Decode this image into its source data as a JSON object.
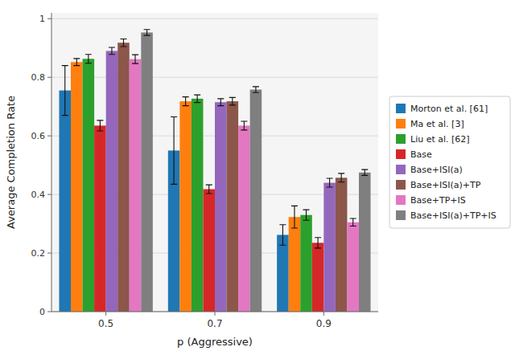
{
  "chart_data": {
    "type": "bar",
    "xlabel": "p (Aggressive)",
    "ylabel": "Average Completion Rate",
    "categories": [
      "0.5",
      "0.7",
      "0.9"
    ],
    "series": [
      {
        "name": "Morton et al. [61]",
        "color": "#1f77b4",
        "values": [
          0.755,
          0.55,
          0.262
        ],
        "errors": [
          0.085,
          0.115,
          0.035
        ]
      },
      {
        "name": "Ma et al. [3]",
        "color": "#ff7f0e",
        "values": [
          0.852,
          0.718,
          0.323
        ],
        "errors": [
          0.012,
          0.015,
          0.038
        ]
      },
      {
        "name": "Liu et al. [62]",
        "color": "#2ca02c",
        "values": [
          0.863,
          0.727,
          0.33
        ],
        "errors": [
          0.015,
          0.013,
          0.018
        ]
      },
      {
        "name": "Base",
        "color": "#d62728",
        "values": [
          0.635,
          0.418,
          0.235
        ],
        "errors": [
          0.018,
          0.015,
          0.018
        ]
      },
      {
        "name": "Base+ISI(a)",
        "color": "#9467bd",
        "values": [
          0.89,
          0.715,
          0.44
        ],
        "errors": [
          0.012,
          0.012,
          0.015
        ]
      },
      {
        "name": "Base+ISI(a)+TP",
        "color": "#8c564b",
        "values": [
          0.918,
          0.718,
          0.457
        ],
        "errors": [
          0.013,
          0.013,
          0.015
        ]
      },
      {
        "name": "Base+TP+IS",
        "color": "#e377c2",
        "values": [
          0.862,
          0.635,
          0.305
        ],
        "errors": [
          0.015,
          0.015,
          0.013
        ]
      },
      {
        "name": "Base+ISI(a)+TP+IS",
        "color": "#7f7f7f",
        "values": [
          0.953,
          0.758,
          0.475
        ],
        "errors": [
          0.01,
          0.01,
          0.01
        ]
      }
    ],
    "ylim": [
      0.0,
      1.02
    ],
    "yticks": [
      0.0,
      0.2,
      0.4,
      0.6,
      0.8,
      1.0
    ],
    "grid": true,
    "legend": "right"
  }
}
